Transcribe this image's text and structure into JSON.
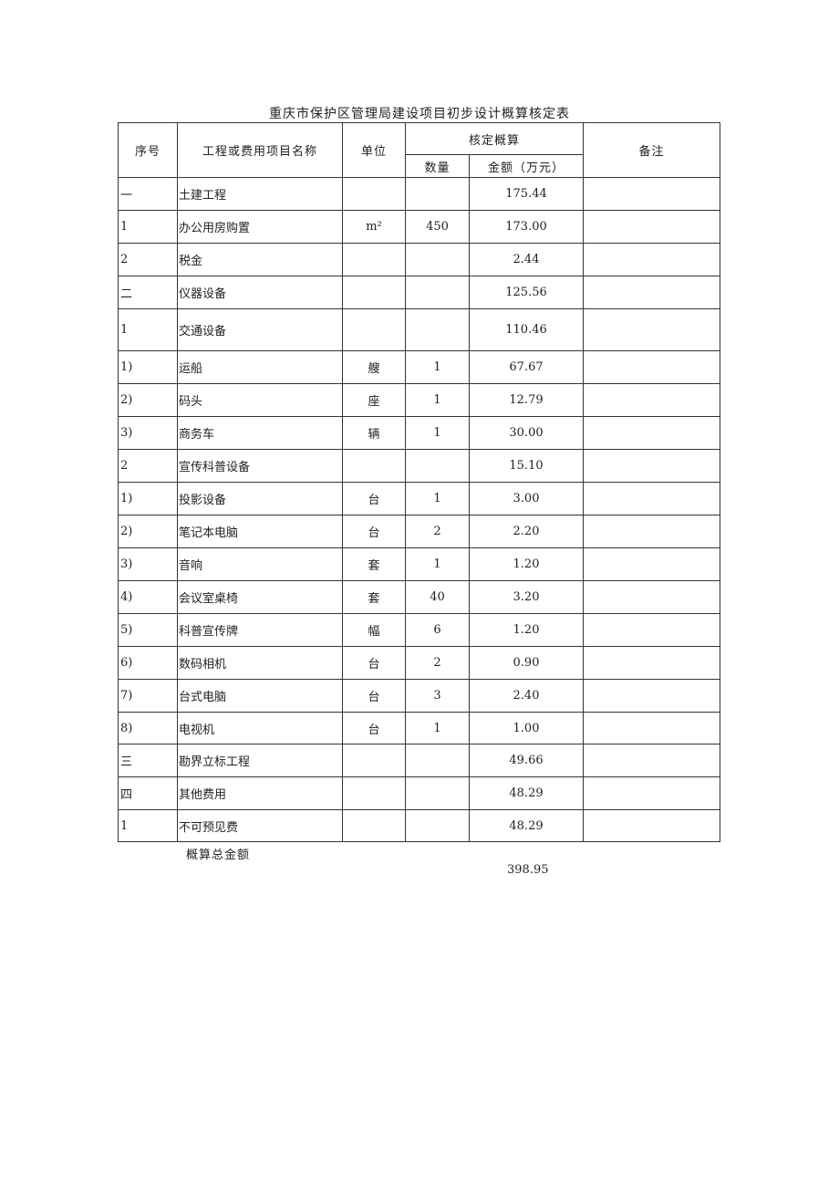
{
  "title": "重庆市保护区管理局建设项目初步设计概算核定表",
  "headers": {
    "seq": "序号",
    "name": "工程或费用项目名称",
    "unit": "单位",
    "approved": "核定概算",
    "qty": "数量",
    "amount": "金额（万元）",
    "remark": "备注"
  },
  "rows": [
    {
      "seq": "一",
      "name": "土建工程",
      "unit": "",
      "qty": "",
      "amount": "175.44",
      "remark": ""
    },
    {
      "seq": "1",
      "name": "办公用房购置",
      "unit": "m²",
      "qty": "450",
      "amount": "173.00",
      "remark": ""
    },
    {
      "seq": "2",
      "name": "税金",
      "unit": "",
      "qty": "",
      "amount": "2.44",
      "remark": ""
    },
    {
      "seq": "二",
      "name": "仪器设备",
      "unit": "",
      "qty": "",
      "amount": "125.56",
      "remark": ""
    },
    {
      "seq": "1",
      "name": "交通设备",
      "unit": "",
      "qty": "",
      "amount": "110.46",
      "remark": ""
    },
    {
      "seq": "1)",
      "name": "运船",
      "unit": "艘",
      "qty": "1",
      "amount": "67.67",
      "remark": ""
    },
    {
      "seq": "2)",
      "name": "码头",
      "unit": "座",
      "qty": "1",
      "amount": "12.79",
      "remark": ""
    },
    {
      "seq": "3)",
      "name": "商务车",
      "unit": "辆",
      "qty": "1",
      "amount": "30.00",
      "remark": ""
    },
    {
      "seq": "2",
      "name": "宣传科普设备",
      "unit": "",
      "qty": "",
      "amount": "15.10",
      "remark": ""
    },
    {
      "seq": "1)",
      "name": "投影设备",
      "unit": "台",
      "qty": "1",
      "amount": "3.00",
      "remark": ""
    },
    {
      "seq": "2)",
      "name": "笔记本电脑",
      "unit": "台",
      "qty": "2",
      "amount": "2.20",
      "remark": ""
    },
    {
      "seq": "3)",
      "name": "音响",
      "unit": "套",
      "qty": "1",
      "amount": "1.20",
      "remark": ""
    },
    {
      "seq": "4)",
      "name": "会议室桌椅",
      "unit": "套",
      "qty": "40",
      "amount": "3.20",
      "remark": ""
    },
    {
      "seq": "5)",
      "name": "科普宣传牌",
      "unit": "幅",
      "qty": "6",
      "amount": "1.20",
      "remark": ""
    },
    {
      "seq": "6)",
      "name": "数码相机",
      "unit": "台",
      "qty": "2",
      "amount": "0.90",
      "remark": ""
    },
    {
      "seq": "7)",
      "name": "台式电脑",
      "unit": "台",
      "qty": "3",
      "amount": "2.40",
      "remark": ""
    },
    {
      "seq": "8)",
      "name": "电视机",
      "unit": "台",
      "qty": "1",
      "amount": "1.00",
      "remark": ""
    },
    {
      "seq": "三",
      "name": "勘界立标工程",
      "unit": "",
      "qty": "",
      "amount": "49.66",
      "remark": ""
    },
    {
      "seq": "四",
      "name": "其他费用",
      "unit": "",
      "qty": "",
      "amount": "48.29",
      "remark": ""
    },
    {
      "seq": "1",
      "name": "不可预见费",
      "unit": "",
      "qty": "",
      "amount": "48.29",
      "remark": ""
    }
  ],
  "total": {
    "label": "概算总金额",
    "value": "398.95"
  }
}
